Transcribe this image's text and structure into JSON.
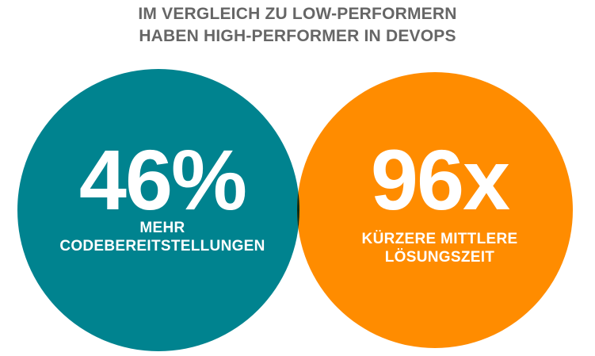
{
  "title": {
    "line1": "IM VERGLEICH ZU LOW-PERFORMERN",
    "line2": "HABEN HIGH-PERFORMER IN DEVOPS"
  },
  "left": {
    "value": "46%",
    "caption_line1": "MEHR",
    "caption_line2": "CODEBEREITSTELLUNGEN",
    "color": "#00838F"
  },
  "right": {
    "value": "96x",
    "caption_line1": "KÜRZERE MITTLERE",
    "caption_line2": "LÖSUNGSZEIT",
    "color": "#FF8C00"
  },
  "overlap_color": "#0D2A14"
}
